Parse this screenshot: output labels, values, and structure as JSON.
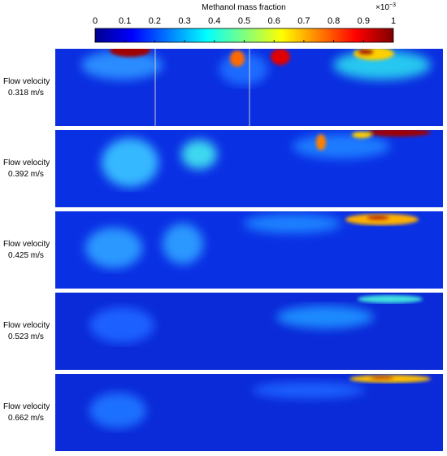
{
  "colorbar": {
    "title": "Methanol mass fraction",
    "lim": [
      0,
      1
    ],
    "ticks": [
      0,
      0.1,
      0.2,
      0.3,
      0.4,
      0.5,
      0.6,
      0.7,
      0.8,
      0.9,
      1
    ],
    "exponent_base": "×10",
    "exponent": "−3"
  },
  "panels": [
    {
      "label": "Flow velocity",
      "velocity": "0.318 m/s"
    },
    {
      "label": "Flow velocity",
      "velocity": "0.392 m/s"
    },
    {
      "label": "Flow velocity",
      "velocity": "0.425 m/s"
    },
    {
      "label": "Flow velocity",
      "velocity": "0.523 m/s"
    },
    {
      "label": "Flow velocity",
      "velocity": "0.662 m/s"
    }
  ]
}
